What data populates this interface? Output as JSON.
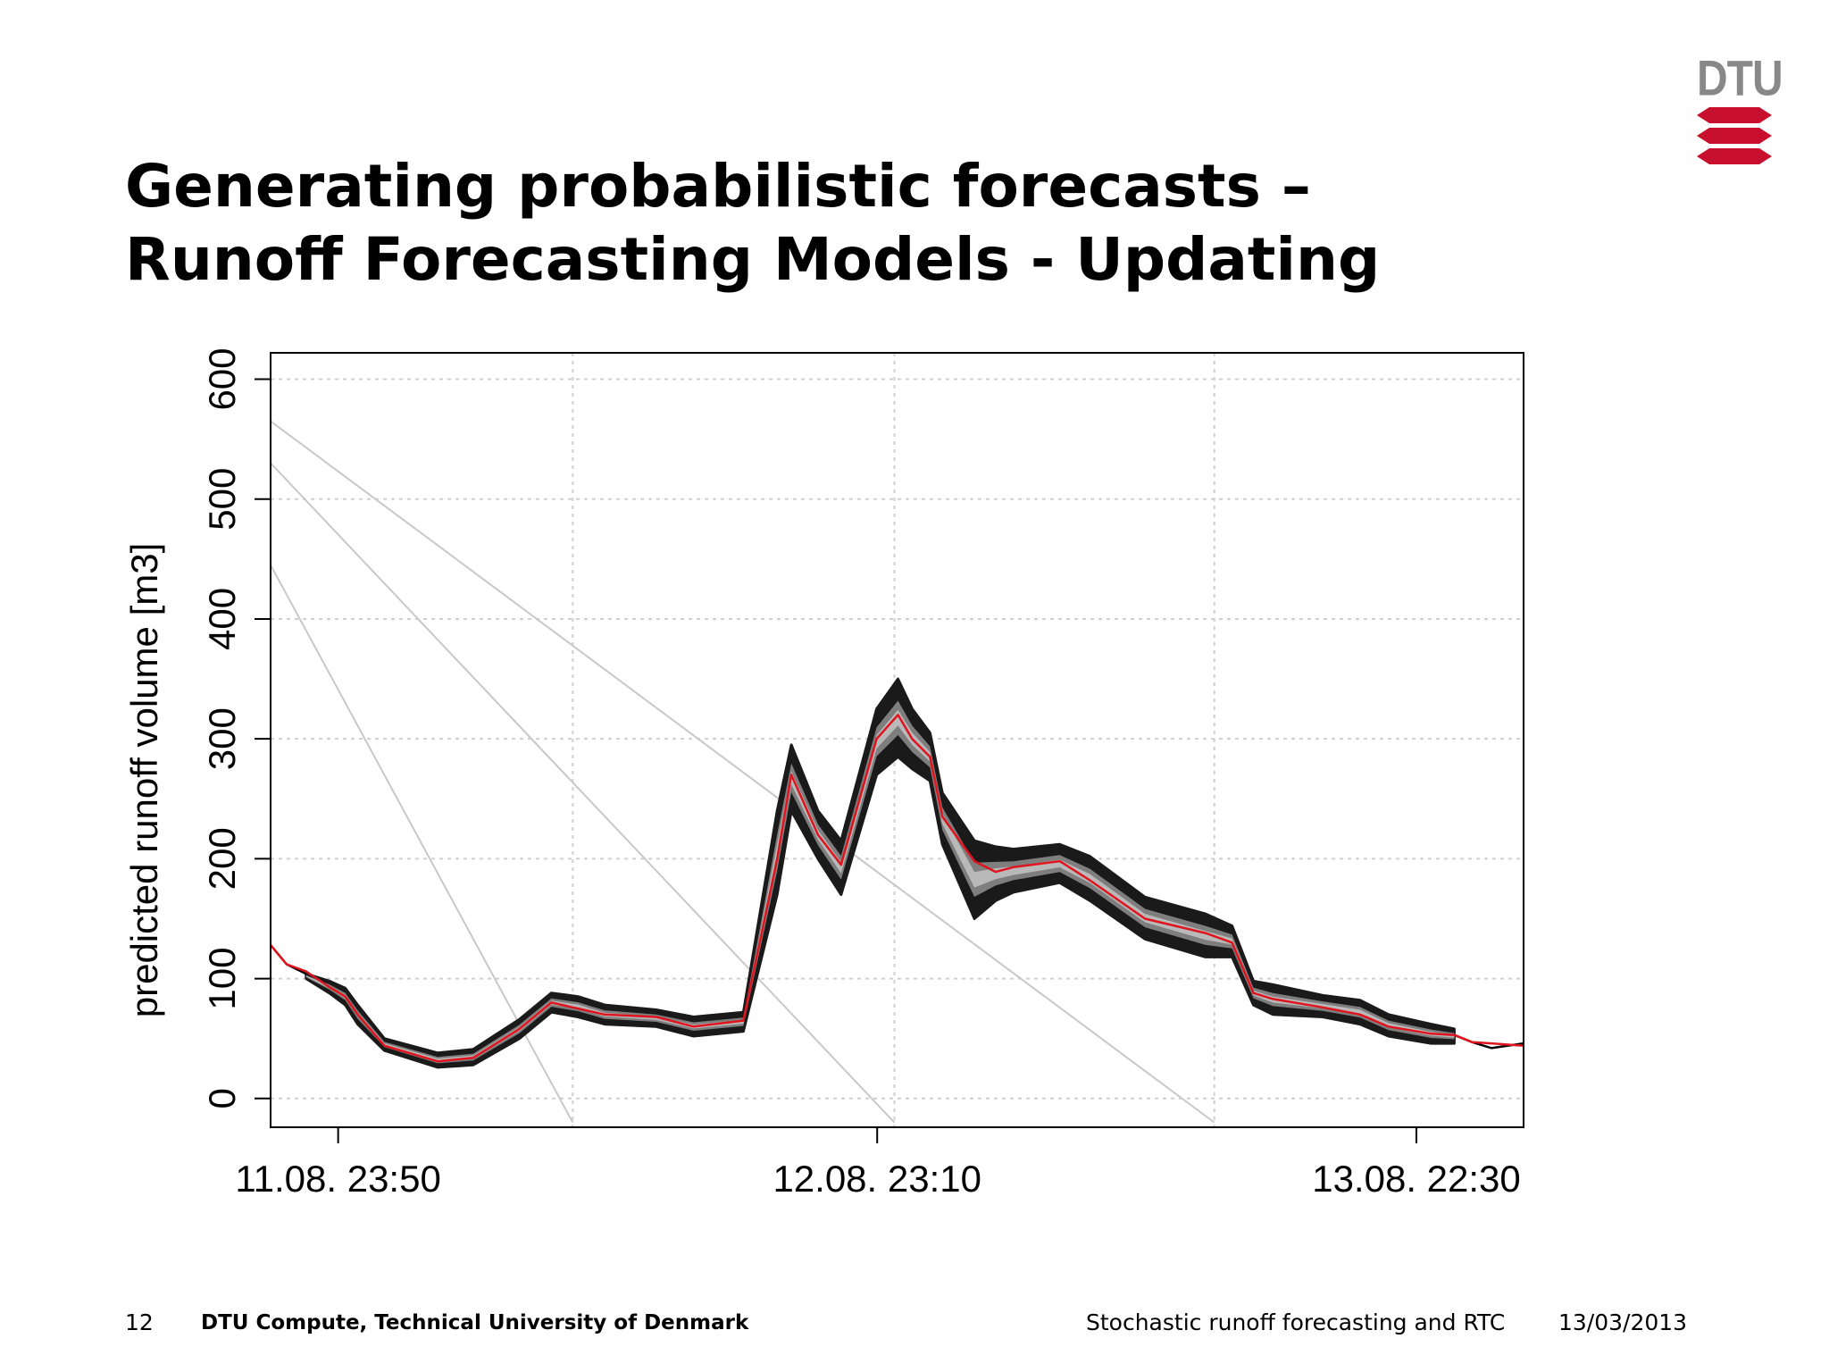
{
  "slide": {
    "title_lines": [
      "Generating probabilistic forecasts –",
      "Runoff Forecasting Models - Updating"
    ],
    "logo_text": "DTU",
    "page_number": "12",
    "organization": "DTU Compute, Technical University of Denmark",
    "topic": "Stochastic runoff forecasting and RTC",
    "date": "13/03/2013"
  },
  "colors": {
    "accent": "#c8102e",
    "band_dark": "#1a1a1a",
    "band_light": "#c0c0c0",
    "observed": "#000000",
    "forecast_median": "#e0141e",
    "gridline": "#cfcfcf",
    "logo_gray": "#888888"
  },
  "chart_data": {
    "type": "area",
    "title": "",
    "xlabel": "",
    "ylabel": "predicted runoff volume [m3]",
    "x_unit": "hours",
    "xlim": [
      -3.8,
      66.7
    ],
    "ylim": [
      -24,
      622
    ],
    "yticks": [
      0,
      100,
      200,
      300,
      400,
      500,
      600
    ],
    "xticks": [
      {
        "t": 0,
        "label": "11.08. 23:50"
      },
      {
        "t": 30.33,
        "label": "12.08. 23:10"
      },
      {
        "t": 60.67,
        "label": "13.08. 22:30"
      }
    ],
    "grid": true,
    "vertical_gridlines_t": [
      13.2,
      31.3,
      49.3
    ],
    "legend": "none",
    "series": [
      {
        "role": "forecast_median",
        "x": [
          -3.8,
          -2.9,
          -1.8,
          -0.5,
          0.4,
          1.1,
          2.6,
          5.6,
          7.6,
          10.2,
          12.0,
          13.5,
          15.0,
          17.9,
          20.0,
          22.8,
          24.7,
          25.5,
          27.0,
          28.3,
          30.3,
          31.5,
          32.3,
          33.3,
          34.0,
          35.8,
          37.0,
          38.0,
          40.6,
          42.3,
          45.4,
          48.8,
          50.3,
          51.5,
          52.6,
          55.4,
          57.5,
          59.1,
          61.5,
          62.8,
          63.8,
          64.9,
          66.7
        ],
        "y": [
          128,
          112,
          106,
          93,
          85,
          70,
          44,
          31,
          34,
          58,
          80,
          75,
          70,
          68,
          60,
          65,
          200,
          270,
          220,
          195,
          300,
          320,
          300,
          285,
          235,
          198,
          189,
          193,
          198,
          182,
          150,
          138,
          130,
          88,
          83,
          76,
          70,
          60,
          54,
          53,
          47,
          46,
          44
        ]
      },
      {
        "role": "band_upper",
        "x": [
          -1.8,
          -0.5,
          0.4,
          1.1,
          2.6,
          5.6,
          7.6,
          10.2,
          12.0,
          13.5,
          15.0,
          17.9,
          20.0,
          22.8,
          24.7,
          25.5,
          27.0,
          28.3,
          30.3,
          31.5,
          32.3,
          33.3,
          34.0,
          35.8,
          37.0,
          38.0,
          40.6,
          42.3,
          45.4,
          48.8,
          50.3,
          51.5,
          52.6,
          55.4,
          57.5,
          59.1,
          61.5,
          62.8
        ],
        "y": [
          104,
          98,
          92,
          78,
          50,
          38,
          41,
          66,
          88,
          85,
          78,
          74,
          68,
          72,
          240,
          295,
          240,
          215,
          325,
          350,
          325,
          305,
          255,
          215,
          210,
          208,
          212,
          202,
          168,
          154,
          144,
          98,
          95,
          86,
          82,
          70,
          62,
          58
        ]
      },
      {
        "role": "band_lower",
        "x": [
          -1.8,
          -0.5,
          0.4,
          1.1,
          2.6,
          5.6,
          7.6,
          10.2,
          12.0,
          13.5,
          15.0,
          17.9,
          20.0,
          22.8,
          24.7,
          25.5,
          27.0,
          28.3,
          30.3,
          31.5,
          32.3,
          33.3,
          34.0,
          35.8,
          37.0,
          38.0,
          40.6,
          42.3,
          45.4,
          48.8,
          50.3,
          51.5,
          52.6,
          55.4,
          57.5,
          59.1,
          61.5,
          62.8
        ],
        "y": [
          100,
          88,
          78,
          62,
          40,
          26,
          28,
          50,
          72,
          68,
          62,
          60,
          52,
          56,
          170,
          240,
          200,
          170,
          270,
          285,
          275,
          265,
          212,
          150,
          165,
          172,
          180,
          165,
          133,
          118,
          118,
          78,
          70,
          68,
          62,
          52,
          46,
          46
        ]
      },
      {
        "role": "observed",
        "x": [
          -3.8,
          -2.9,
          -1.8,
          62.8,
          63.8,
          64.9,
          66.7
        ],
        "y": [
          128,
          112,
          104,
          53,
          47,
          42,
          46
        ]
      }
    ],
    "diagonal_lines": [
      {
        "x": [
          -3.8,
          13.2
        ],
        "y": [
          445,
          -20
        ]
      },
      {
        "x": [
          -3.8,
          31.3
        ],
        "y": [
          530,
          -20
        ]
      },
      {
        "x": [
          -3.8,
          49.3
        ],
        "y": [
          565,
          -20
        ]
      }
    ]
  }
}
